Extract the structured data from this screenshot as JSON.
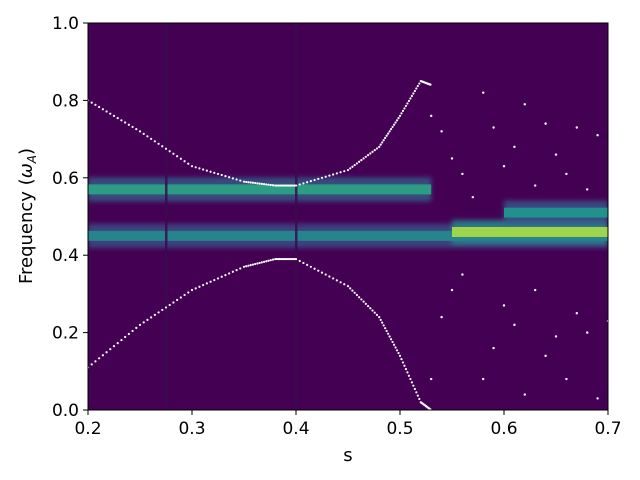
{
  "chart_data": {
    "type": "heatmap",
    "title": "",
    "xlabel": "s",
    "ylabel_main": "Frequency (",
    "ylabel_omega": "ω",
    "ylabel_sub": "A",
    "ylabel_close": ")",
    "xlim": [
      0.2,
      0.7
    ],
    "ylim": [
      0.0,
      1.0
    ],
    "xticks": [
      0.2,
      0.3,
      0.4,
      0.5,
      0.6,
      0.7
    ],
    "xtick_labels": [
      "0.2",
      "0.3",
      "0.4",
      "0.5",
      "0.6",
      "0.7"
    ],
    "yticks": [
      0.0,
      0.2,
      0.4,
      0.6,
      0.8,
      1.0
    ],
    "ytick_labels": [
      "0.0",
      "0.2",
      "0.4",
      "0.6",
      "0.8",
      "1.0"
    ],
    "colormap": "viridis",
    "background_color": "#440154",
    "grid": false,
    "legend": "none",
    "bands": [
      {
        "y": 0.57,
        "x_start": 0.2,
        "x_end": 0.53,
        "intensity": 0.55
      },
      {
        "y": 0.45,
        "x_start": 0.2,
        "x_end": 0.7,
        "intensity": 0.45
      },
      {
        "y": 0.46,
        "x_start": 0.55,
        "x_end": 0.7,
        "intensity": 0.85
      },
      {
        "y": 0.51,
        "x_start": 0.6,
        "x_end": 0.7,
        "intensity": 0.5
      }
    ],
    "continuum_upper": {
      "x": [
        0.2,
        0.25,
        0.3,
        0.35,
        0.38,
        0.4,
        0.45,
        0.48,
        0.5,
        0.52,
        0.53
      ],
      "y": [
        0.8,
        0.72,
        0.63,
        0.59,
        0.58,
        0.58,
        0.62,
        0.68,
        0.76,
        0.85,
        0.84
      ]
    },
    "continuum_lower": {
      "x": [
        0.2,
        0.25,
        0.3,
        0.35,
        0.38,
        0.4,
        0.45,
        0.48,
        0.5,
        0.52,
        0.53
      ],
      "y": [
        0.11,
        0.22,
        0.31,
        0.37,
        0.39,
        0.39,
        0.32,
        0.24,
        0.14,
        0.02,
        0.0
      ]
    },
    "scatter_points": {
      "x": [
        0.53,
        0.53,
        0.54,
        0.54,
        0.55,
        0.55,
        0.56,
        0.56,
        0.57,
        0.58,
        0.58,
        0.59,
        0.59,
        0.6,
        0.6,
        0.61,
        0.61,
        0.62,
        0.62,
        0.63,
        0.63,
        0.64,
        0.64,
        0.65,
        0.65,
        0.66,
        0.66,
        0.67,
        0.67,
        0.68,
        0.68,
        0.69,
        0.69,
        0.7
      ],
      "y": [
        0.76,
        0.08,
        0.72,
        0.24,
        0.65,
        0.31,
        0.61,
        0.35,
        0.55,
        0.82,
        0.08,
        0.73,
        0.16,
        0.63,
        0.27,
        0.68,
        0.22,
        0.79,
        0.04,
        0.58,
        0.31,
        0.74,
        0.14,
        0.66,
        0.19,
        0.61,
        0.08,
        0.73,
        0.25,
        0.57,
        0.2,
        0.71,
        0.03,
        0.23
      ]
    }
  }
}
